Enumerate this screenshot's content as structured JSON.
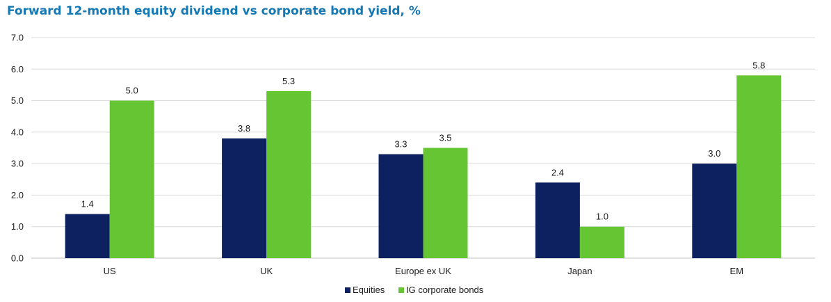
{
  "colors": {
    "title": "#1478b4",
    "equities": "#0d2160",
    "bonds": "#66c533",
    "grid": "#d9d9d9",
    "axis": "#bfbfbf"
  },
  "chart_data": {
    "type": "bar",
    "title": "Forward 12-month equity dividend vs corporate bond yield, %",
    "xlabel": "",
    "ylabel": "",
    "ylim": [
      0,
      7
    ],
    "yticks": [
      "0.0",
      "1.0",
      "2.0",
      "3.0",
      "4.0",
      "5.0",
      "6.0",
      "7.0"
    ],
    "grid": true,
    "legend_position": "bottom-center",
    "categories": [
      "US",
      "UK",
      "Europe ex UK",
      "Japan",
      "EM"
    ],
    "series": [
      {
        "name": "Equities",
        "color": "#0d2160",
        "values": [
          1.4,
          3.8,
          3.3,
          2.4,
          3.0
        ],
        "labels": [
          "1.4",
          "3.8",
          "3.3",
          "2.4",
          "3.0"
        ]
      },
      {
        "name": "IG corporate bonds",
        "color": "#66c533",
        "values": [
          5.0,
          5.3,
          3.5,
          1.0,
          5.8
        ],
        "labels": [
          "5.0",
          "5.3",
          "3.5",
          "1.0",
          "5.8"
        ]
      }
    ]
  }
}
